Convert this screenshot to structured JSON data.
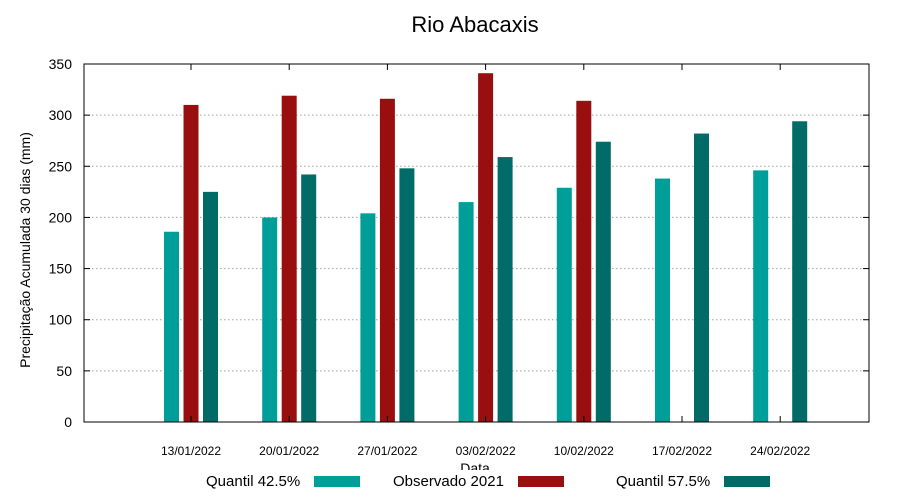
{
  "chart_data": {
    "type": "bar",
    "title": "Rio Abacaxis",
    "xlabel": "Data",
    "ylabel": "Precipitação Acumulada 30 dias (mm)",
    "ylim": [
      0,
      350
    ],
    "yticks": [
      0,
      50,
      100,
      150,
      200,
      250,
      300,
      350
    ],
    "grid": true,
    "legend_position": "bottom",
    "categories": [
      "13/01/2022",
      "20/01/2022",
      "27/01/2022",
      "03/02/2022",
      "10/02/2022",
      "17/02/2022",
      "24/02/2022"
    ],
    "series": [
      {
        "name": "Quantil 42.5%",
        "color": "#009e99",
        "values": [
          186,
          200,
          204,
          215,
          229,
          238,
          246
        ]
      },
      {
        "name": "Observado 2021",
        "color": "#990f0f",
        "values": [
          310,
          319,
          316,
          341,
          314,
          null,
          null
        ]
      },
      {
        "name": "Quantil 57.5%",
        "color": "#006b67",
        "values": [
          225,
          242,
          248,
          259,
          274,
          282,
          294
        ]
      }
    ]
  }
}
